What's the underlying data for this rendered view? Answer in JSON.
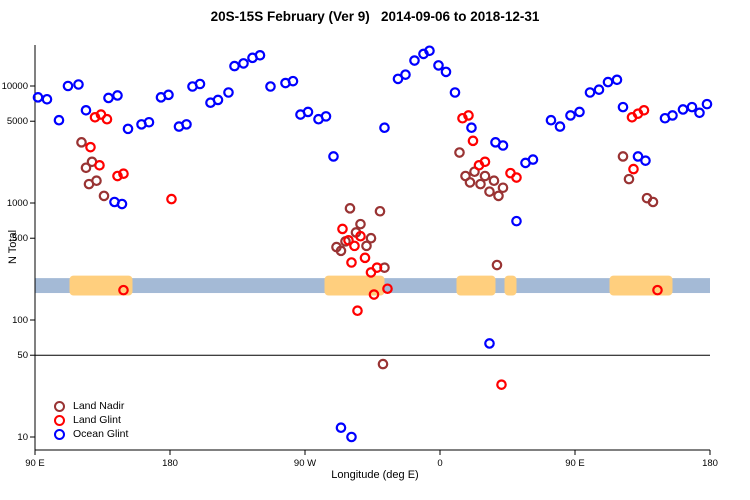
{
  "chart_data": {
    "type": "scatter",
    "title": "20S-15S February (Ver 9)   2014-09-06 to 2018-12-31",
    "xlabel": "Longitude (deg E)",
    "ylabel": "N Total",
    "x_axis": {
      "start_deg": 90,
      "end_deg": 540,
      "note": "longitude axis runs eastward from 90E wrapping through 180, 90W, 0, 90E to 180",
      "ticks": [
        {
          "pos": 90,
          "label": "90 E"
        },
        {
          "pos": 180,
          "label": "180"
        },
        {
          "pos": 270,
          "label": "90 W"
        },
        {
          "pos": 360,
          "label": "0"
        },
        {
          "pos": 450,
          "label": "90 E"
        },
        {
          "pos": 540,
          "label": "180"
        }
      ]
    },
    "y_axis": {
      "scale": "log10",
      "min": 8,
      "max": 25000,
      "ticks": [
        10,
        50,
        100,
        500,
        1000,
        5000,
        10000
      ]
    },
    "reference_line_y": 50,
    "map_band": {
      "n_range": [
        170,
        228
      ],
      "ocean_color": "#A4BAD6",
      "land_color": "#FFCF7E",
      "land_segments_deg": [
        [
          113,
          155
        ],
        [
          283,
          323
        ],
        [
          371,
          397
        ],
        [
          403,
          411
        ],
        [
          473,
          515
        ]
      ]
    },
    "legend_position": "bottom-left",
    "series": [
      {
        "name": "Land Nadir",
        "color": "#993333",
        "points": [
          [
            121,
            3300
          ],
          [
            124,
            2000
          ],
          [
            128,
            2250
          ],
          [
            126,
            1450
          ],
          [
            131,
            1550
          ],
          [
            136,
            1150
          ],
          [
            291,
            420
          ],
          [
            294,
            390
          ],
          [
            297,
            470
          ],
          [
            300,
            900
          ],
          [
            304,
            560
          ],
          [
            307,
            660
          ],
          [
            311,
            430
          ],
          [
            314,
            500
          ],
          [
            320,
            850
          ],
          [
            323,
            280
          ],
          [
            322,
            42
          ],
          [
            373,
            2700
          ],
          [
            377,
            1700
          ],
          [
            380,
            1500
          ],
          [
            383,
            1850
          ],
          [
            387,
            1450
          ],
          [
            390,
            1700
          ],
          [
            393,
            1250
          ],
          [
            396,
            1550
          ],
          [
            399,
            1150
          ],
          [
            402,
            1350
          ],
          [
            398,
            295
          ],
          [
            482,
            2500
          ],
          [
            486,
            1600
          ],
          [
            498,
            1100
          ],
          [
            502,
            1020
          ]
        ]
      },
      {
        "name": "Land Glint",
        "color": "#FF0000",
        "points": [
          [
            130,
            5400
          ],
          [
            134,
            5700
          ],
          [
            138,
            5200
          ],
          [
            127,
            3000
          ],
          [
            133,
            2100
          ],
          [
            145,
            1700
          ],
          [
            149,
            1780
          ],
          [
            149,
            180
          ],
          [
            181,
            1080
          ],
          [
            295,
            600
          ],
          [
            299,
            480
          ],
          [
            303,
            430
          ],
          [
            307,
            520
          ],
          [
            301,
            310
          ],
          [
            310,
            340
          ],
          [
            314,
            255
          ],
          [
            318,
            280
          ],
          [
            316,
            165
          ],
          [
            325,
            185
          ],
          [
            305,
            120
          ],
          [
            375,
            5300
          ],
          [
            379,
            5600
          ],
          [
            382,
            3400
          ],
          [
            386,
            2100
          ],
          [
            390,
            2250
          ],
          [
            407,
            1800
          ],
          [
            411,
            1650
          ],
          [
            401,
            28
          ],
          [
            488,
            5400
          ],
          [
            492,
            5800
          ],
          [
            496,
            6200
          ],
          [
            489,
            1950
          ],
          [
            505,
            180
          ]
        ]
      },
      {
        "name": "Ocean Glint",
        "color": "#0000FF",
        "points": [
          [
            92,
            8000
          ],
          [
            98,
            7700
          ],
          [
            106,
            5100
          ],
          [
            112,
            10000
          ],
          [
            119,
            10300
          ],
          [
            124,
            6200
          ],
          [
            139,
            7900
          ],
          [
            145,
            8300
          ],
          [
            152,
            4300
          ],
          [
            143,
            1020
          ],
          [
            148,
            980
          ],
          [
            161,
            4700
          ],
          [
            166,
            4900
          ],
          [
            174,
            8000
          ],
          [
            179,
            8400
          ],
          [
            186,
            4500
          ],
          [
            191,
            4700
          ],
          [
            195,
            9900
          ],
          [
            200,
            10400
          ],
          [
            207,
            7200
          ],
          [
            212,
            7600
          ],
          [
            219,
            8800
          ],
          [
            223,
            14800
          ],
          [
            229,
            15600
          ],
          [
            235,
            17400
          ],
          [
            240,
            18300
          ],
          [
            247,
            9900
          ],
          [
            257,
            10600
          ],
          [
            262,
            11000
          ],
          [
            267,
            5700
          ],
          [
            272,
            6000
          ],
          [
            279,
            5200
          ],
          [
            284,
            5500
          ],
          [
            289,
            2500
          ],
          [
            323,
            4400
          ],
          [
            332,
            11500
          ],
          [
            337,
            12500
          ],
          [
            343,
            16500
          ],
          [
            349,
            18800
          ],
          [
            353,
            20000
          ],
          [
            359,
            15000
          ],
          [
            364,
            13200
          ],
          [
            370,
            8800
          ],
          [
            381,
            4400
          ],
          [
            393,
            63
          ],
          [
            397,
            3300
          ],
          [
            402,
            3100
          ],
          [
            411,
            700
          ],
          [
            417,
            2200
          ],
          [
            422,
            2350
          ],
          [
            434,
            5100
          ],
          [
            440,
            4500
          ],
          [
            447,
            5600
          ],
          [
            453,
            6000
          ],
          [
            460,
            8800
          ],
          [
            466,
            9300
          ],
          [
            472,
            10800
          ],
          [
            478,
            11300
          ],
          [
            482,
            6600
          ],
          [
            492,
            2500
          ],
          [
            497,
            2300
          ],
          [
            510,
            5300
          ],
          [
            515,
            5600
          ],
          [
            522,
            6300
          ],
          [
            528,
            6600
          ],
          [
            533,
            5900
          ],
          [
            538,
            7000
          ],
          [
            294,
            12
          ],
          [
            301,
            10
          ]
        ]
      }
    ]
  }
}
